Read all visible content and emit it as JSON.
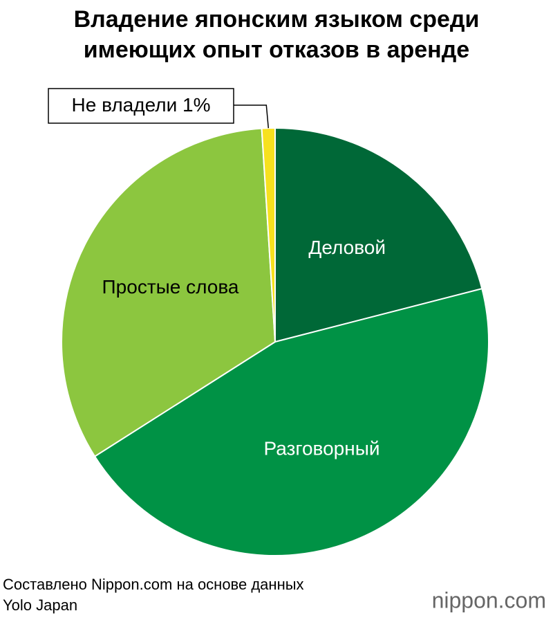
{
  "chart_data": {
    "type": "pie",
    "title": [
      "Владение японским языком среди",
      "имеющих опыт отказов в аренде"
    ],
    "categories": [
      "Деловой",
      "Разговорный",
      "Простые слова",
      "Не владели"
    ],
    "values": [
      21,
      45,
      33,
      1
    ],
    "value_labels": [
      null,
      null,
      null,
      "1%"
    ],
    "colors": [
      "#006837",
      "#009245",
      "#8cc63f",
      "#f7e11e"
    ],
    "source": [
      "Составлено Nippon.com на основе данных",
      "Yolo Japan"
    ],
    "logo": "nippon.com"
  }
}
